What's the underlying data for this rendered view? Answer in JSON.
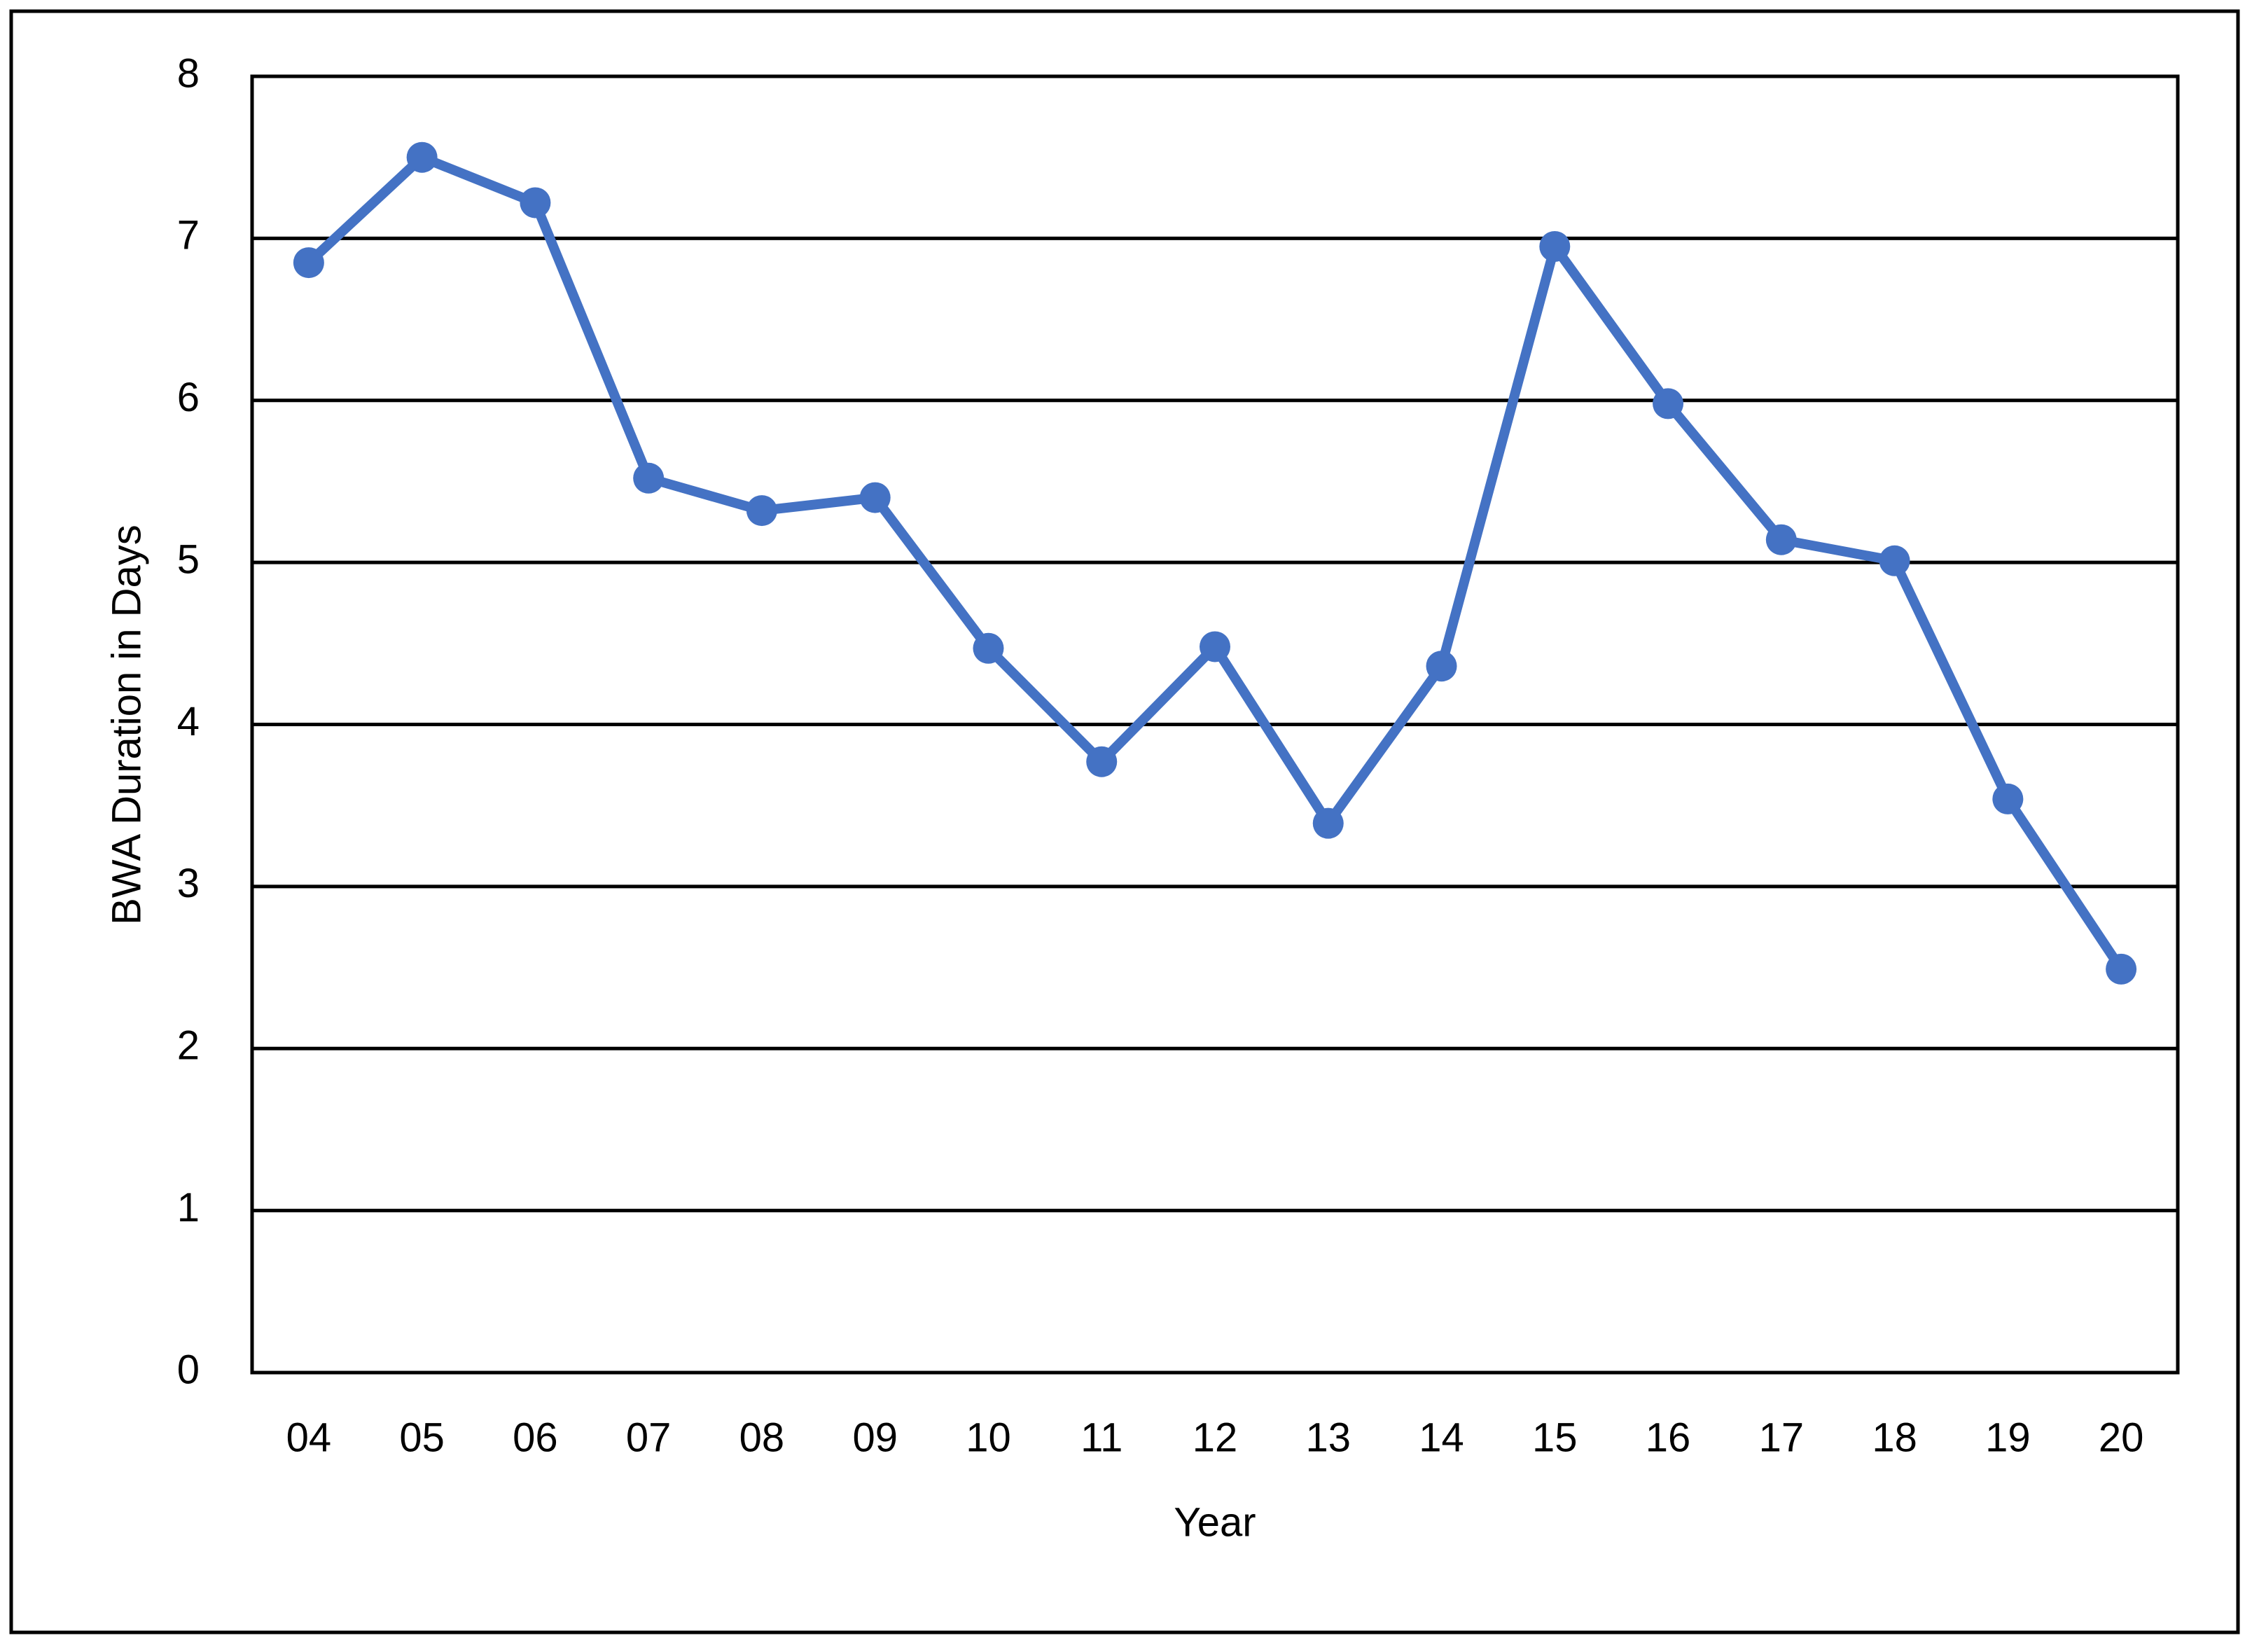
{
  "chart_data": {
    "type": "line",
    "x_label": "Year",
    "y_label": "BWA Duration in Days",
    "categories": [
      "04",
      "05",
      "06",
      "07",
      "08",
      "09",
      "10",
      "11",
      "12",
      "13",
      "14",
      "15",
      "16",
      "17",
      "18",
      "19",
      "20"
    ],
    "series": [
      {
        "color": "#4472c4",
        "values": [
          6.85,
          7.5,
          7.22,
          5.52,
          5.32,
          5.4,
          4.47,
          3.77,
          4.48,
          3.39,
          4.36,
          6.95,
          5.98,
          5.14,
          5.01,
          3.54,
          2.49
        ]
      }
    ],
    "ylim": [
      0,
      8
    ],
    "yticks": [
      0,
      1,
      2,
      3,
      4,
      5,
      6,
      7,
      8
    ],
    "grid": true
  }
}
